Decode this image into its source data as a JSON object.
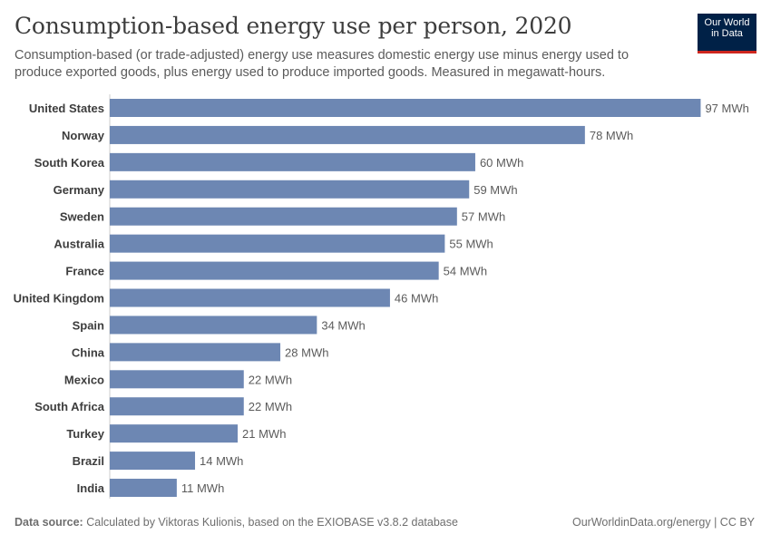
{
  "header": {
    "title": "Consumption-based energy use per person, 2020",
    "subtitle": "Consumption-based (or trade-adjusted) energy use measures domestic energy use minus energy used to produce exported goods, plus energy used to produce imported goods. Measured in megawatt-hours."
  },
  "logo": {
    "line1": "Our World",
    "line2": "in Data"
  },
  "footer": {
    "source_label": "Data source:",
    "source_text": "Calculated by Viktoras Kulionis, based on the EXIOBASE v3.8.2 database",
    "right_text": "OurWorldinData.org/energy | CC BY"
  },
  "colors": {
    "bar": "#6d87b3",
    "axis": "#cccccc",
    "label": "#3d3d3d",
    "value": "#5b5b5b"
  },
  "chart_data": {
    "type": "bar",
    "orientation": "horizontal",
    "unit": "MWh",
    "categories": [
      "United States",
      "Norway",
      "South Korea",
      "Germany",
      "Sweden",
      "Australia",
      "France",
      "United Kingdom",
      "Spain",
      "China",
      "Mexico",
      "South Africa",
      "Turkey",
      "Brazil",
      "India"
    ],
    "values": [
      97,
      78,
      60,
      59,
      57,
      55,
      54,
      46,
      34,
      28,
      22,
      22,
      21,
      14,
      11
    ],
    "value_labels": [
      "97 MWh",
      "78 MWh",
      "60 MWh",
      "59 MWh",
      "57 MWh",
      "55 MWh",
      "54 MWh",
      "46 MWh",
      "34 MWh",
      "28 MWh",
      "22 MWh",
      "22 MWh",
      "21 MWh",
      "14 MWh",
      "11 MWh"
    ]
  }
}
